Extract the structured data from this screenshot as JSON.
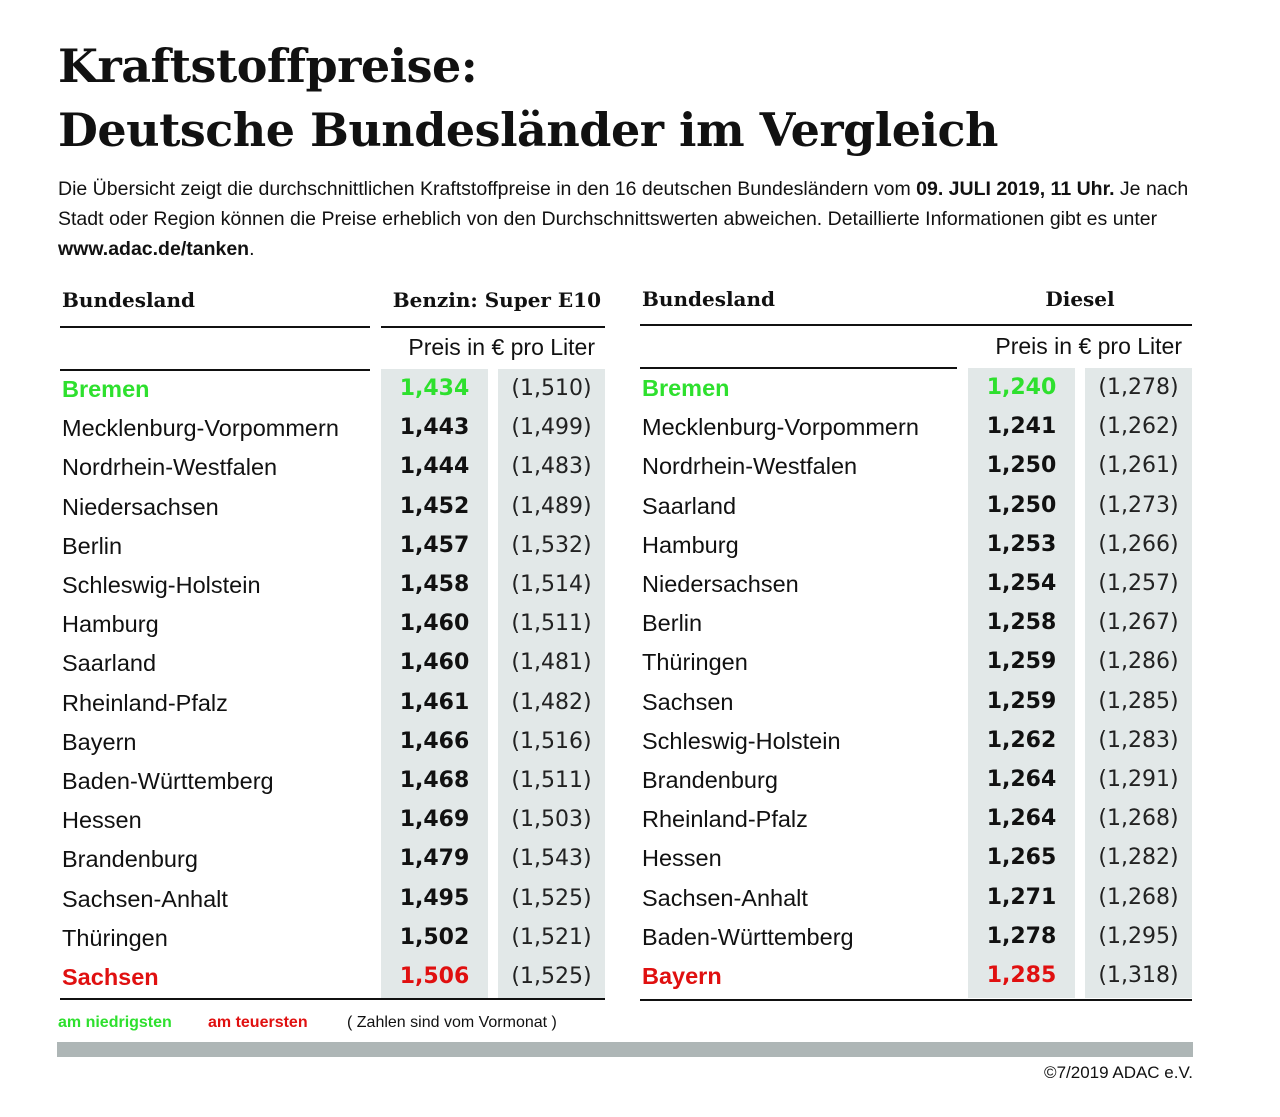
{
  "title": {
    "line1": "Kraftstoffpreise:",
    "line2": "Deutsche Bundesländer im Vergleich"
  },
  "intro": {
    "text1": "Die Übersicht zeigt die durchschnittlichen Kraftstoffpreise in den 16 deutschen Bundesländern vom ",
    "date": "09. JULI 2019, 11 Uhr.",
    "text2": " Je nach Stadt oder Region können die Preise erheblich von den Durchschnittswerten abweichen. Detaillierte Informationen gibt es unter ",
    "link": "www.adac.de/tanken",
    "text3": "."
  },
  "colors": {
    "lowest": "#2ee02e",
    "highest": "#e01010",
    "shade": "#e2e8e8",
    "bar": "#aeb6b6"
  },
  "benzin": {
    "col_name": "Bundesland",
    "col_price": "Benzin:  Super E10",
    "unit": "Preis in € pro Liter",
    "rows": [
      {
        "name": "Bremen",
        "price": "1,434",
        "prev": "(1,510)",
        "mark": "low"
      },
      {
        "name": "Mecklenburg-Vorpommern",
        "price": "1,443",
        "prev": "(1,499)"
      },
      {
        "name": "Nordrhein-Westfalen",
        "price": "1,444",
        "prev": "(1,483)"
      },
      {
        "name": "Niedersachsen",
        "price": "1,452",
        "prev": "(1,489)"
      },
      {
        "name": "Berlin",
        "price": "1,457",
        "prev": "(1,532)"
      },
      {
        "name": "Schleswig-Holstein",
        "price": "1,458",
        "prev": "(1,514)"
      },
      {
        "name": "Hamburg",
        "price": "1,460",
        "prev": "(1,511)"
      },
      {
        "name": "Saarland",
        "price": "1,460",
        "prev": "(1,481)"
      },
      {
        "name": "Rheinland-Pfalz",
        "price": "1,461",
        "prev": "(1,482)"
      },
      {
        "name": "Bayern",
        "price": "1,466",
        "prev": "(1,516)"
      },
      {
        "name": "Baden-Württemberg",
        "price": "1,468",
        "prev": "(1,511)"
      },
      {
        "name": "Hessen",
        "price": "1,469",
        "prev": "(1,503)"
      },
      {
        "name": "Brandenburg",
        "price": "1,479",
        "prev": "(1,543)"
      },
      {
        "name": "Sachsen-Anhalt",
        "price": "1,495",
        "prev": "(1,525)"
      },
      {
        "name": "Thüringen",
        "price": "1,502",
        "prev": "(1,521)"
      },
      {
        "name": "Sachsen",
        "price": "1,506",
        "prev": "(1,525)",
        "mark": "high"
      }
    ]
  },
  "diesel": {
    "col_name": "Bundesland",
    "col_price": "Diesel",
    "unit": "Preis in € pro Liter",
    "rows": [
      {
        "name": "Bremen",
        "price": "1,240",
        "prev": "(1,278)",
        "mark": "low"
      },
      {
        "name": "Mecklenburg-Vorpommern",
        "price": "1,241",
        "prev": "(1,262)"
      },
      {
        "name": "Nordrhein-Westfalen",
        "price": "1,250",
        "prev": "(1,261)"
      },
      {
        "name": "Saarland",
        "price": "1,250",
        "prev": "(1,273)"
      },
      {
        "name": "Hamburg",
        "price": "1,253",
        "prev": "(1,266)"
      },
      {
        "name": "Niedersachsen",
        "price": "1,254",
        "prev": "(1,257)"
      },
      {
        "name": "Berlin",
        "price": "1,258",
        "prev": "(1,267)"
      },
      {
        "name": "Thüringen",
        "price": "1,259",
        "prev": "(1,286)"
      },
      {
        "name": "Sachsen",
        "price": "1,259",
        "prev": "(1,285)"
      },
      {
        "name": "Schleswig-Holstein",
        "price": "1,262",
        "prev": "(1,283)"
      },
      {
        "name": "Brandenburg",
        "price": "1,264",
        "prev": "(1,291)"
      },
      {
        "name": "Rheinland-Pfalz",
        "price": "1,264",
        "prev": "(1,268)"
      },
      {
        "name": "Hessen",
        "price": "1,265",
        "prev": "(1,282)"
      },
      {
        "name": "Sachsen-Anhalt",
        "price": "1,271",
        "prev": "(1,268)"
      },
      {
        "name": "Baden-Württemberg",
        "price": "1,278",
        "prev": "(1,295)"
      },
      {
        "name": "Bayern",
        "price": "1,285",
        "prev": "(1,318)",
        "mark": "high"
      }
    ]
  },
  "legend": {
    "lowest": "am niedrigsten",
    "highest": "am teuersten",
    "note": "( Zahlen sind vom Vormonat )"
  },
  "copyright": "©7/2019 ADAC e.V."
}
